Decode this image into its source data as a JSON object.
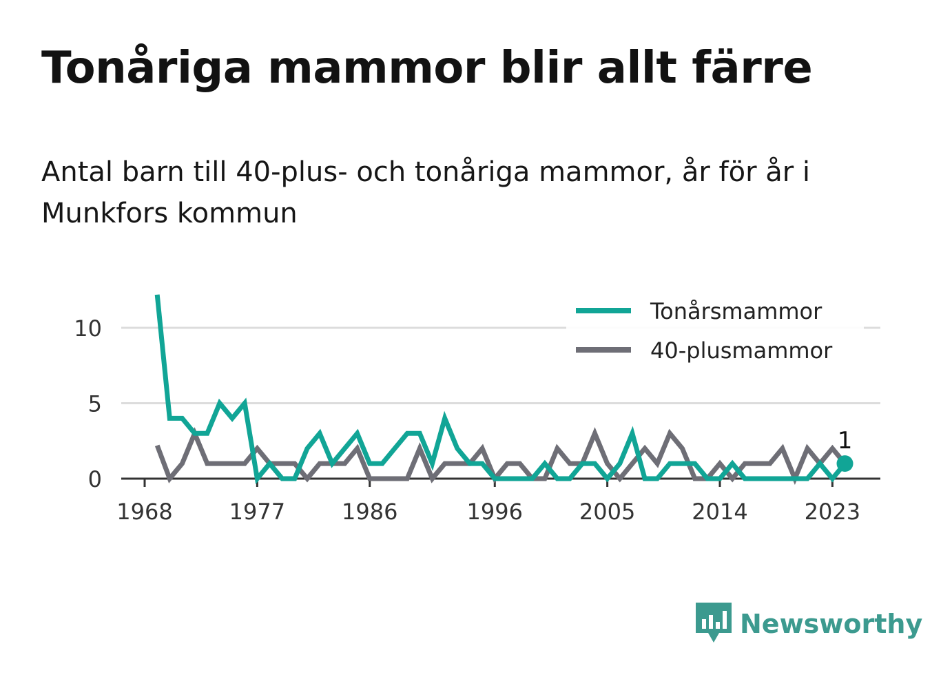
{
  "title": "Tonåriga mammor blir allt färre",
  "subtitle": "Antal barn till 40-plus- och tonåriga mammor, år för år i Munkfors kommun",
  "brand": "Newsworthy",
  "colors": {
    "teens": "#11a596",
    "forty": "#6e6e76",
    "grid": "#dcdcdc",
    "axis": "#333333"
  },
  "chart_data": {
    "type": "line",
    "x_ticks": [
      1968,
      1977,
      1986,
      1996,
      2005,
      2014,
      2023
    ],
    "y_ticks": [
      0,
      5,
      10
    ],
    "ylim": [
      0,
      12.5
    ],
    "xlim": [
      1967,
      2027
    ],
    "grid": "horizontal",
    "legend_position": "top-right",
    "end_label": "1",
    "series": [
      {
        "name": "Tonårsmammor",
        "x": [
          1969,
          1970,
          1971,
          1972,
          1973,
          1974,
          1975,
          1976,
          1977,
          1978,
          1979,
          1980,
          1981,
          1982,
          1983,
          1984,
          1985,
          1986,
          1987,
          1988,
          1989,
          1990,
          1991,
          1992,
          1993,
          1994,
          1995,
          1996,
          1997,
          1998,
          1999,
          2000,
          2001,
          2002,
          2003,
          2004,
          2005,
          2006,
          2007,
          2008,
          2009,
          2010,
          2011,
          2012,
          2013,
          2014,
          2015,
          2016,
          2017,
          2018,
          2019,
          2020,
          2021,
          2022,
          2023,
          2024
        ],
        "values": [
          12.2,
          4,
          4,
          3,
          3,
          5,
          4,
          5,
          0,
          1,
          0,
          0,
          2,
          3,
          1,
          2,
          3,
          1,
          1,
          2,
          3,
          3,
          1,
          4,
          2,
          1,
          1,
          0,
          0,
          0,
          0,
          1,
          0,
          0,
          1,
          1,
          0,
          1,
          3,
          0,
          0,
          1,
          1,
          1,
          0,
          0,
          1,
          0,
          0,
          0,
          0,
          0,
          0,
          1,
          0,
          1
        ]
      },
      {
        "name": "40-plusmammor",
        "x": [
          1969,
          1970,
          1971,
          1972,
          1973,
          1974,
          1975,
          1976,
          1977,
          1978,
          1979,
          1980,
          1981,
          1982,
          1983,
          1984,
          1985,
          1986,
          1987,
          1988,
          1989,
          1990,
          1991,
          1992,
          1993,
          1994,
          1995,
          1996,
          1997,
          1998,
          1999,
          2000,
          2001,
          2002,
          2003,
          2004,
          2005,
          2006,
          2007,
          2008,
          2009,
          2010,
          2011,
          2012,
          2013,
          2014,
          2015,
          2016,
          2017,
          2018,
          2019,
          2020,
          2021,
          2022,
          2023,
          2024
        ],
        "values": [
          2.2,
          0,
          1,
          3,
          1,
          1,
          1,
          1,
          2,
          1,
          1,
          1,
          0,
          1,
          1,
          1,
          2,
          0,
          0,
          0,
          0,
          2,
          0,
          1,
          1,
          1,
          2,
          0,
          1,
          1,
          0,
          0,
          2,
          1,
          1,
          3,
          1,
          0,
          1,
          2,
          1,
          3,
          2,
          0,
          0,
          1,
          0,
          1,
          1,
          1,
          2,
          0,
          2,
          1,
          2,
          1
        ]
      }
    ]
  }
}
